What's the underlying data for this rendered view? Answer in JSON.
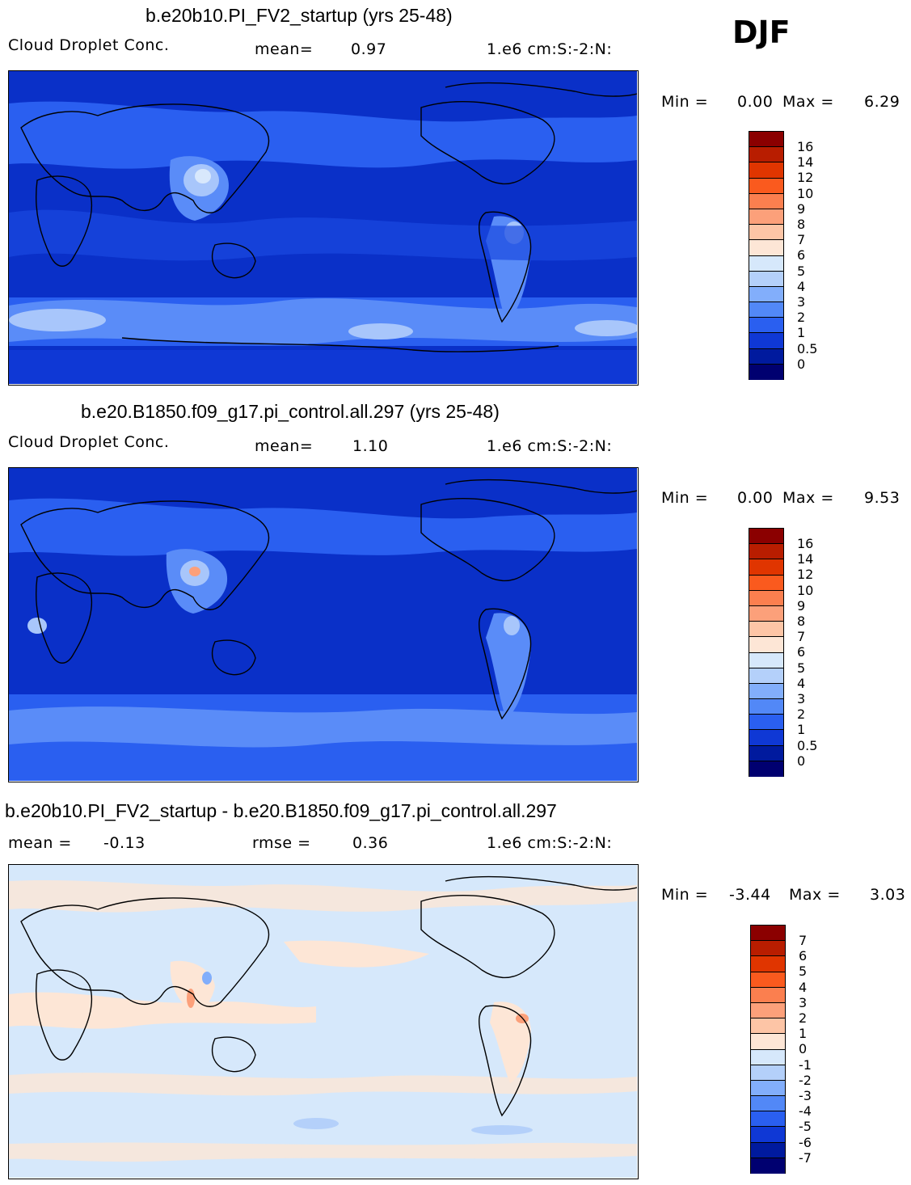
{
  "season": "DJF",
  "panels": [
    {
      "title": "b.e20b10.PI_FV2_startup (yrs 25-48)",
      "left_label": "Cloud Droplet Conc.",
      "stat_label": "mean=",
      "stat_value": "0.97",
      "units": "1.e6 cm:S:-2:N:",
      "min_label": "Min =",
      "min_value": "0.00",
      "max_label": "Max =",
      "max_value": "6.29",
      "levels": [
        "16",
        "14",
        "12",
        "10",
        "9",
        "8",
        "7",
        "6",
        "5",
        "4",
        "3",
        "2",
        "1",
        "0.5",
        "0"
      ]
    },
    {
      "title": "b.e20.B1850.f09_g17.pi_control.all.297 (yrs 25-48)",
      "left_label": "Cloud Droplet Conc.",
      "stat_label": "mean=",
      "stat_value": "1.10",
      "units": "1.e6 cm:S:-2:N:",
      "min_label": "Min =",
      "min_value": "0.00",
      "max_label": "Max =",
      "max_value": "9.53",
      "levels": [
        "16",
        "14",
        "12",
        "10",
        "9",
        "8",
        "7",
        "6",
        "5",
        "4",
        "3",
        "2",
        "1",
        "0.5",
        "0"
      ]
    },
    {
      "title": "b.e20b10.PI_FV2_startup - b.e20.B1850.f09_g17.pi_control.all.297",
      "left_label": "mean =",
      "left_value": "-0.13",
      "stat_label": "rmse =",
      "stat_value": "0.36",
      "units": "1.e6 cm:S:-2:N:",
      "min_label": "Min =",
      "min_value": "-3.44",
      "max_label": "Max =",
      "max_value": "3.03",
      "levels": [
        "7",
        "6",
        "5",
        "4",
        "3",
        "2",
        "1",
        "0",
        "-1",
        "-2",
        "-3",
        "-4",
        "-5",
        "-6",
        "-7"
      ]
    }
  ],
  "colorbar_colors": [
    "#8b0000",
    "#b81d00",
    "#e03500",
    "#fa5a1e",
    "#fb7f4f",
    "#fca07a",
    "#fdc5a6",
    "#fde6d6",
    "#d6e8fb",
    "#b4d0fa",
    "#82aefb",
    "#5288f7",
    "#2a5ff0",
    "#0f38d5",
    "#001a9e",
    "#000070"
  ],
  "map_colors": {
    "dark": "#0a30c8",
    "mid": "#2a5ff0",
    "light": "#5a8cf8",
    "pale": "#a8c6fb",
    "whitish": "#d8e8fc",
    "diff_bg": "#d6e8fb",
    "diff_pos": "#fde6d6",
    "diff_pos2": "#fca07a",
    "diff_neg": "#b4d0fa",
    "diff_neg2": "#82aefb"
  }
}
